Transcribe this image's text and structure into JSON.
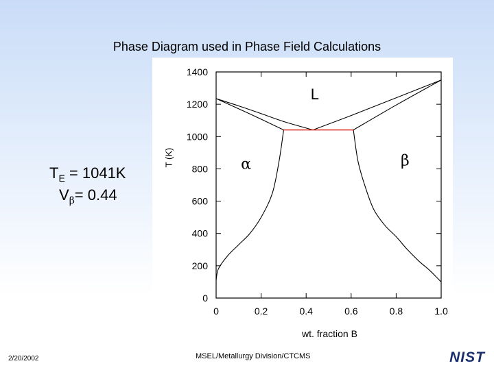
{
  "slide": {
    "title": "Phase Diagram used in Phase Field Calculations",
    "eutectic_label": "T",
    "eutectic_sub": "E",
    "eutectic_value": " = 1041K",
    "volume_label": "V",
    "volume_greek": "β",
    "volume_value": "= 0.44",
    "footer_date": "2/20/2002",
    "footer_org": "MSEL/Metallurgy Division/CTCMS",
    "logo_text": "NIST"
  },
  "chart_data": {
    "type": "line",
    "xlabel": "wt. fraction B",
    "ylabel": "T (K)",
    "xlim": [
      0,
      1.0
    ],
    "ylim": [
      0,
      1400
    ],
    "x_ticks": [
      0,
      0.2,
      0.4,
      0.6,
      0.8,
      1.0
    ],
    "x_tick_labels": [
      "0",
      "0.2",
      "0.4",
      "0.6",
      "0.8",
      "1.0"
    ],
    "y_ticks": [
      0,
      200,
      400,
      600,
      800,
      1000,
      1200,
      1400
    ],
    "y_tick_labels": [
      "0",
      "200",
      "400",
      "600",
      "800",
      "1000",
      "1200",
      "1400"
    ],
    "eutectic_temperature": 1041,
    "series": [
      {
        "name": "liquidus-left",
        "color": "#000000",
        "x": [
          0.0,
          0.1,
          0.2,
          0.3,
          0.43
        ],
        "y": [
          1235,
          1190,
          1142,
          1093,
          1041
        ]
      },
      {
        "name": "liquidus-right",
        "color": "#000000",
        "x": [
          0.43,
          0.6,
          0.8,
          1.0
        ],
        "y": [
          1041,
          1130,
          1240,
          1350
        ]
      },
      {
        "name": "solidus-left",
        "color": "#000000",
        "x": [
          0.0,
          0.15,
          0.3
        ],
        "y": [
          1235,
          1140,
          1041
        ]
      },
      {
        "name": "solidus-right",
        "color": "#000000",
        "x": [
          0.61,
          0.8,
          1.0
        ],
        "y": [
          1041,
          1195,
          1350
        ]
      },
      {
        "name": "solvus-left",
        "color": "#000000",
        "x": [
          0.0,
          0.01,
          0.05,
          0.1,
          0.15,
          0.2,
          0.25,
          0.28,
          0.3
        ],
        "y": [
          110,
          180,
          260,
          330,
          400,
          500,
          650,
          850,
          1041
        ]
      },
      {
        "name": "solvus-right",
        "color": "#000000",
        "x": [
          0.61,
          0.63,
          0.66,
          0.7,
          0.75,
          0.8,
          0.85,
          0.9,
          0.95,
          1.0
        ],
        "y": [
          1041,
          850,
          700,
          550,
          450,
          380,
          300,
          230,
          170,
          100
        ]
      },
      {
        "name": "eutectic-line",
        "color": "#e03020",
        "x": [
          0.3,
          0.61
        ],
        "y": [
          1041,
          1041
        ]
      }
    ],
    "annotations": [
      {
        "text": "L",
        "x": 0.42,
        "y": 1230
      },
      {
        "text": "α",
        "x": 0.11,
        "y": 800
      },
      {
        "text": "β",
        "x": 0.82,
        "y": 820
      }
    ]
  }
}
